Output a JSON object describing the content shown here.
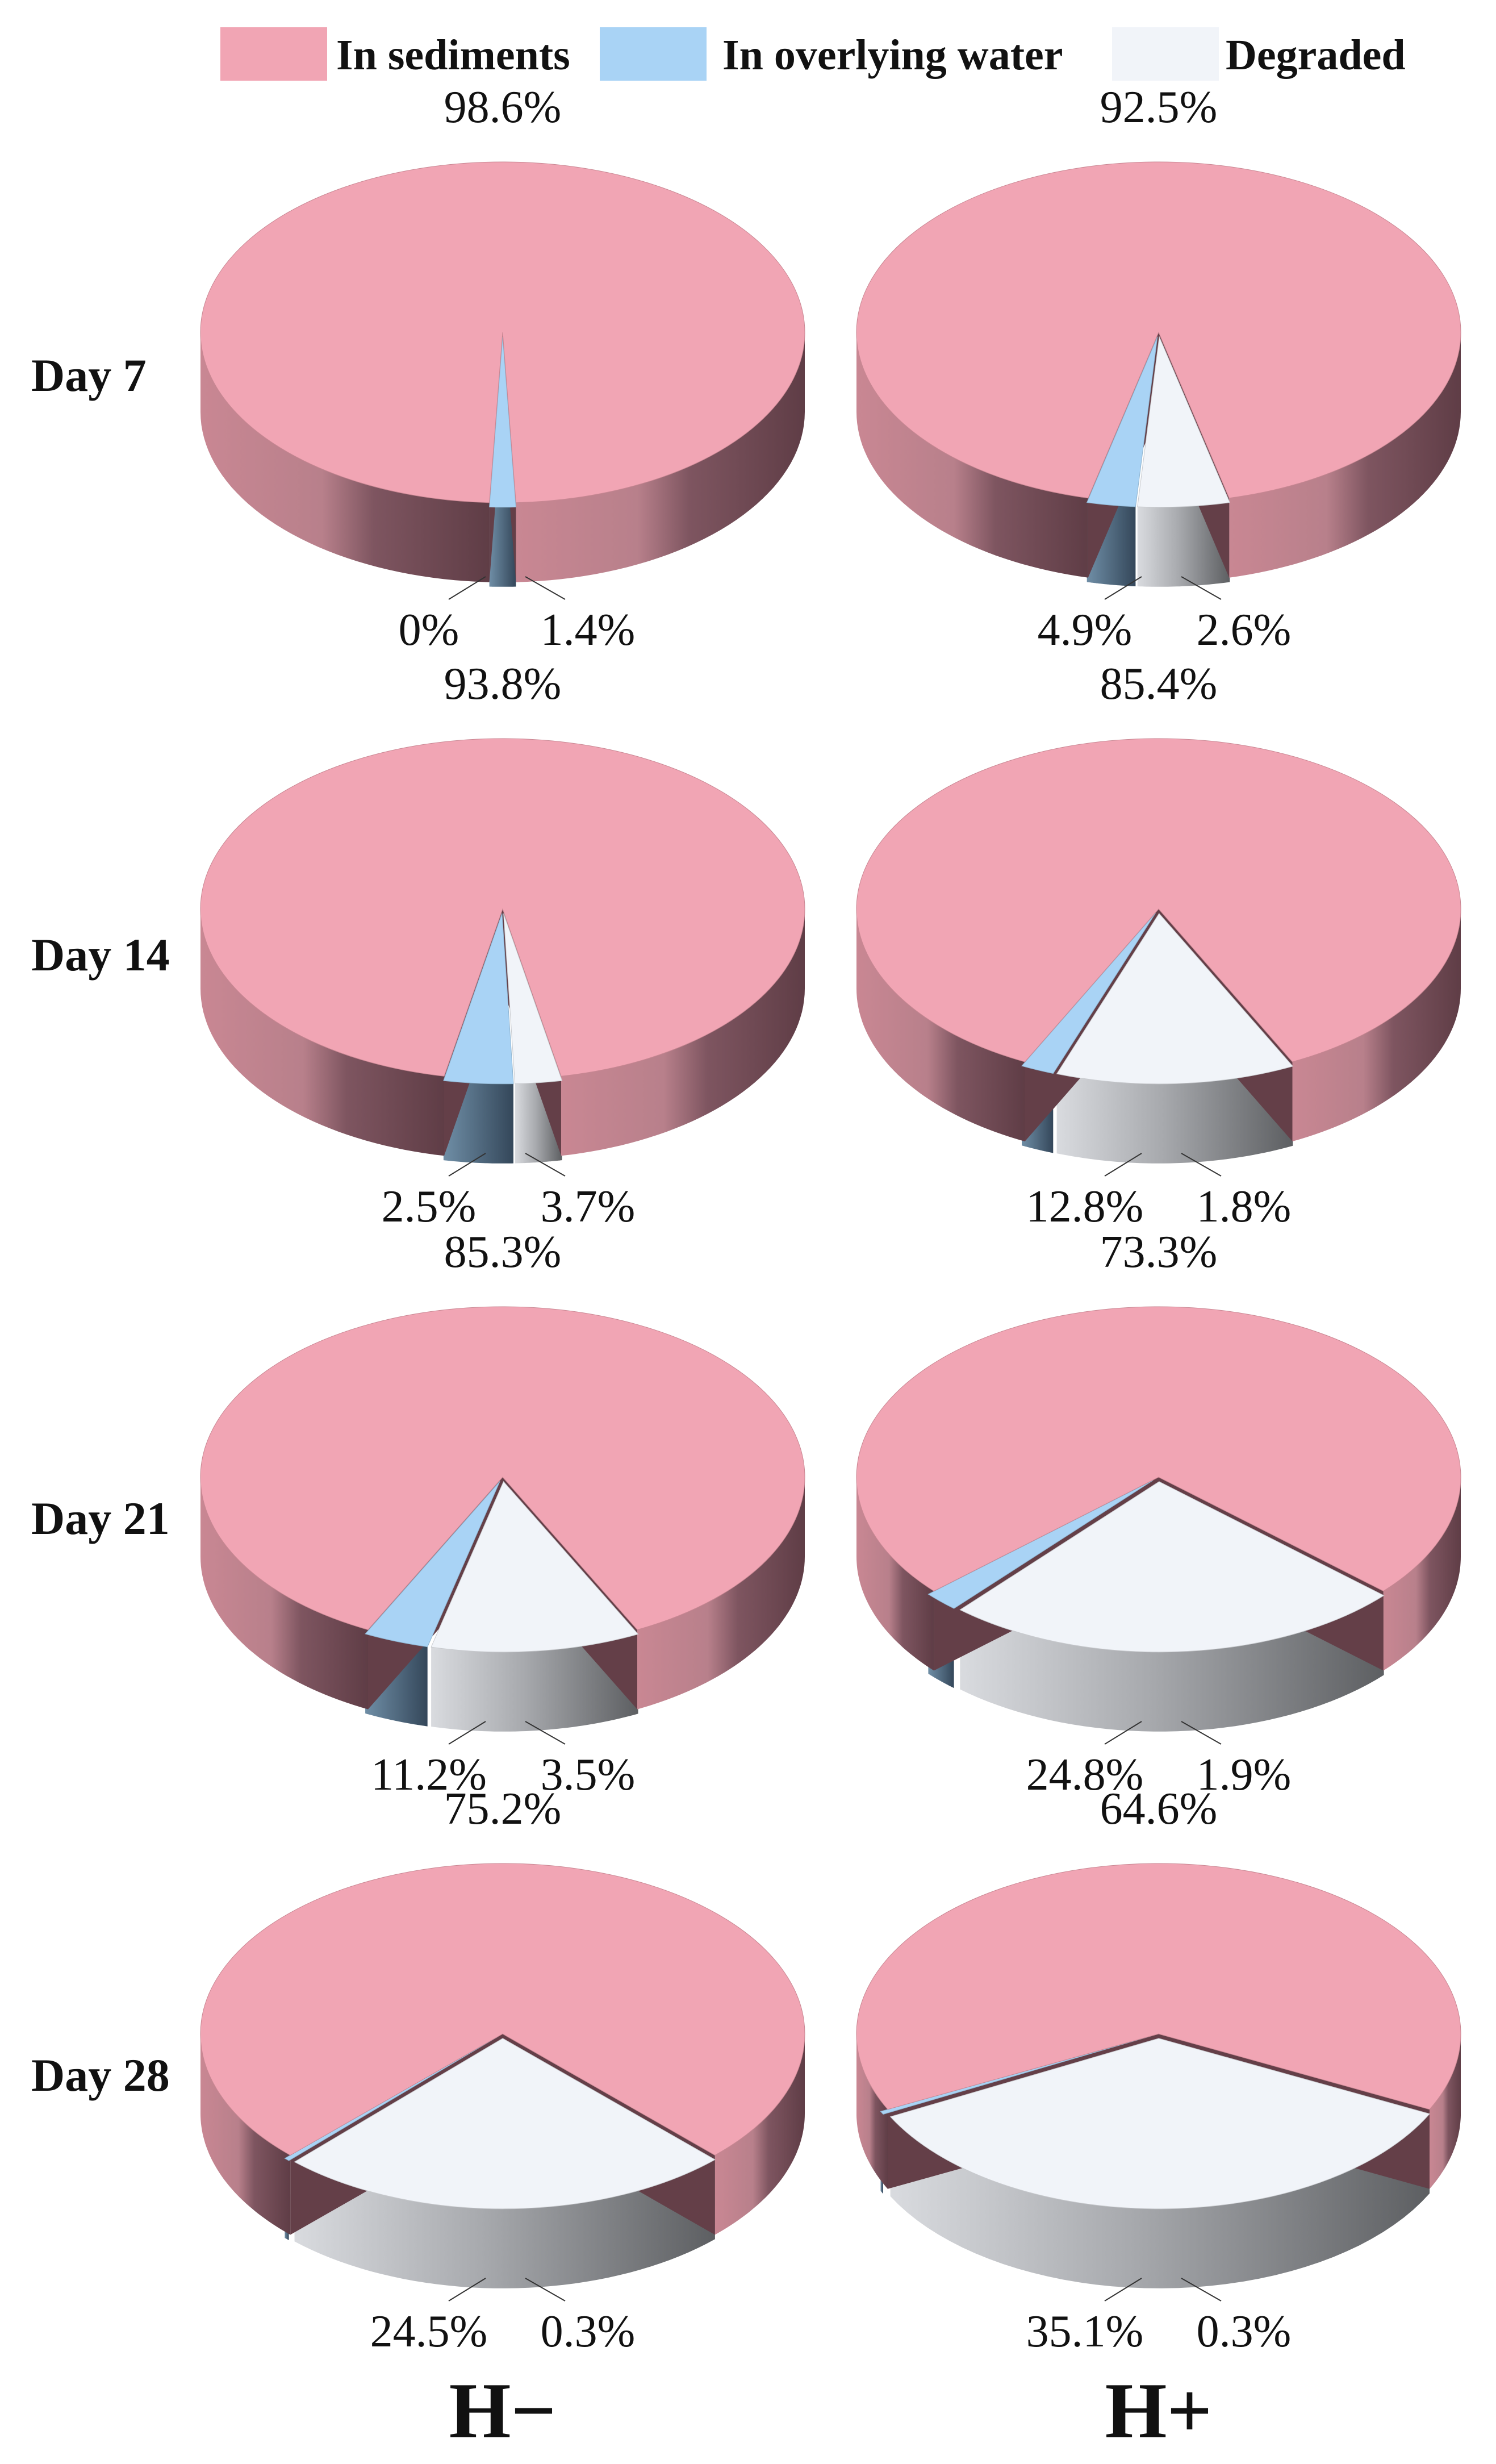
{
  "chart_data": {
    "type": "pie",
    "variant": "3d-exploded",
    "legend": {
      "placement": "top",
      "entries": [
        {
          "label": "In sediments",
          "color": "#f1a5b4"
        },
        {
          "label": "In overlying water",
          "color": "#a9d3f5"
        },
        {
          "label": "Degraded",
          "color": "#f1f4f9"
        }
      ]
    },
    "series_colors": {
      "In sediments": {
        "top": "#f1a5b4",
        "side": "#c98793",
        "dark": "#643f48"
      },
      "In overlying water": {
        "top": "#a9d3f5",
        "side": "#8fb4d0",
        "dark": "#3e5466"
      },
      "Degraded": {
        "top": "#f1f4f9",
        "side": "#c8cace",
        "dark": "#636567"
      }
    },
    "columns": [
      "H−",
      "H+"
    ],
    "rows": [
      "Day 7",
      "Day 14",
      "Day 21",
      "Day 28"
    ],
    "pies": [
      {
        "row": "Day 7",
        "column": "H−",
        "slices": [
          {
            "name": "In sediments",
            "value": 98.6,
            "label": "98.6%"
          },
          {
            "name": "In overlying water",
            "value": 1.4,
            "label": "1.4%"
          },
          {
            "name": "Degraded",
            "value": 0,
            "label": "0%"
          }
        ]
      },
      {
        "row": "Day 7",
        "column": "H+",
        "slices": [
          {
            "name": "In sediments",
            "value": 92.5,
            "label": "92.5%"
          },
          {
            "name": "In overlying water",
            "value": 2.6,
            "label": "2.6%"
          },
          {
            "name": "Degraded",
            "value": 4.9,
            "label": "4.9%"
          }
        ]
      },
      {
        "row": "Day 14",
        "column": "H−",
        "slices": [
          {
            "name": "In sediments",
            "value": 93.8,
            "label": "93.8%"
          },
          {
            "name": "In overlying water",
            "value": 3.7,
            "label": "3.7%"
          },
          {
            "name": "Degraded",
            "value": 2.5,
            "label": "2.5%"
          }
        ]
      },
      {
        "row": "Day 14",
        "column": "H+",
        "slices": [
          {
            "name": "In sediments",
            "value": 85.4,
            "label": "85.4%"
          },
          {
            "name": "In overlying water",
            "value": 1.8,
            "label": "1.8%"
          },
          {
            "name": "Degraded",
            "value": 12.8,
            "label": "12.8%"
          }
        ]
      },
      {
        "row": "Day 21",
        "column": "H−",
        "slices": [
          {
            "name": "In sediments",
            "value": 85.3,
            "label": "85.3%"
          },
          {
            "name": "In overlying water",
            "value": 3.5,
            "label": "3.5%"
          },
          {
            "name": "Degraded",
            "value": 11.2,
            "label": "11.2%"
          }
        ]
      },
      {
        "row": "Day 21",
        "column": "H+",
        "slices": [
          {
            "name": "In sediments",
            "value": 73.3,
            "label": "73.3%"
          },
          {
            "name": "In overlying water",
            "value": 1.9,
            "label": "1.9%"
          },
          {
            "name": "Degraded",
            "value": 24.8,
            "label": "24.8%"
          }
        ]
      },
      {
        "row": "Day 28",
        "column": "H−",
        "slices": [
          {
            "name": "In sediments",
            "value": 75.2,
            "label": "75.2%"
          },
          {
            "name": "In overlying water",
            "value": 0.3,
            "label": "0.3%"
          },
          {
            "name": "Degraded",
            "value": 24.5,
            "label": "24.5%"
          }
        ]
      },
      {
        "row": "Day 28",
        "column": "H+",
        "slices": [
          {
            "name": "In sediments",
            "value": 64.6,
            "label": "64.6%"
          },
          {
            "name": "In overlying water",
            "value": 0.3,
            "label": "0.3%"
          },
          {
            "name": "Degraded",
            "value": 35.1,
            "label": "35.1%"
          }
        ]
      }
    ]
  }
}
